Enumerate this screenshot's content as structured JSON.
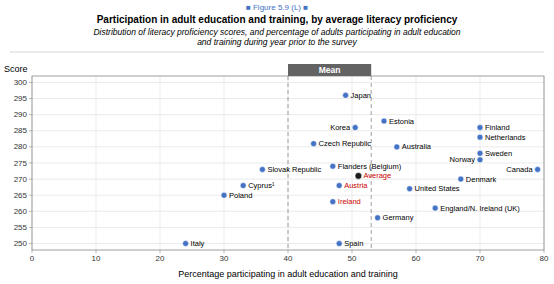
{
  "chart_data": {
    "type": "scatter",
    "figure_label": "■ Figure 5.9 (L) ■",
    "title": "Participation in adult education and training, by average literacy proficiency",
    "subtitle": "Distribution of literacy proficiency scores, and percentage of adults participating in adult education\nand training during year prior to the survey",
    "x_label": "Percentage participating in adult education and training",
    "y_label": "Score",
    "xlim": [
      0,
      80
    ],
    "ylim": [
      248,
      302
    ],
    "xticks": [
      0,
      10,
      20,
      30,
      40,
      50,
      60,
      70,
      80
    ],
    "yticks": [
      250,
      255,
      260,
      265,
      270,
      275,
      280,
      285,
      290,
      295,
      300
    ],
    "grid": true,
    "color": "#4472c4",
    "labels": [
      "Japan",
      "Korea",
      "Estonia",
      "Finland",
      "Czech Republic",
      "Australia",
      "Netherlands",
      "Sweden",
      "Slovak Republic",
      "Flanders (Belgium)",
      "Norway",
      "Canada",
      "Cyprus¹",
      "Austria",
      "Denmark",
      "Poland",
      "Ireland",
      "United States",
      "England/N. Ireland (UK)",
      "Germany",
      "Italy",
      "Spain"
    ],
    "x": [
      49,
      50.5,
      55,
      70,
      44,
      57,
      70,
      70,
      36,
      47,
      70,
      79,
      33,
      48,
      67,
      30,
      47,
      59,
      63,
      54,
      24,
      48
    ],
    "values": [
      296,
      286,
      288,
      286,
      281,
      280,
      283,
      278,
      273,
      274,
      276,
      273,
      268,
      268,
      270,
      265,
      263,
      267,
      261,
      258,
      250,
      250
    ],
    "highlight_labels": [
      "Austria",
      "Ireland"
    ],
    "highlight_color": "#cc0000",
    "average": {
      "label": "Average",
      "x": 51,
      "y": 271,
      "color": "#1a1a1a",
      "label_color": "#cc0000"
    },
    "mean_band": {
      "label": "Mean",
      "x_start": 40,
      "x_end": 53,
      "color": "#636363",
      "text_color": "#ffffff"
    }
  }
}
